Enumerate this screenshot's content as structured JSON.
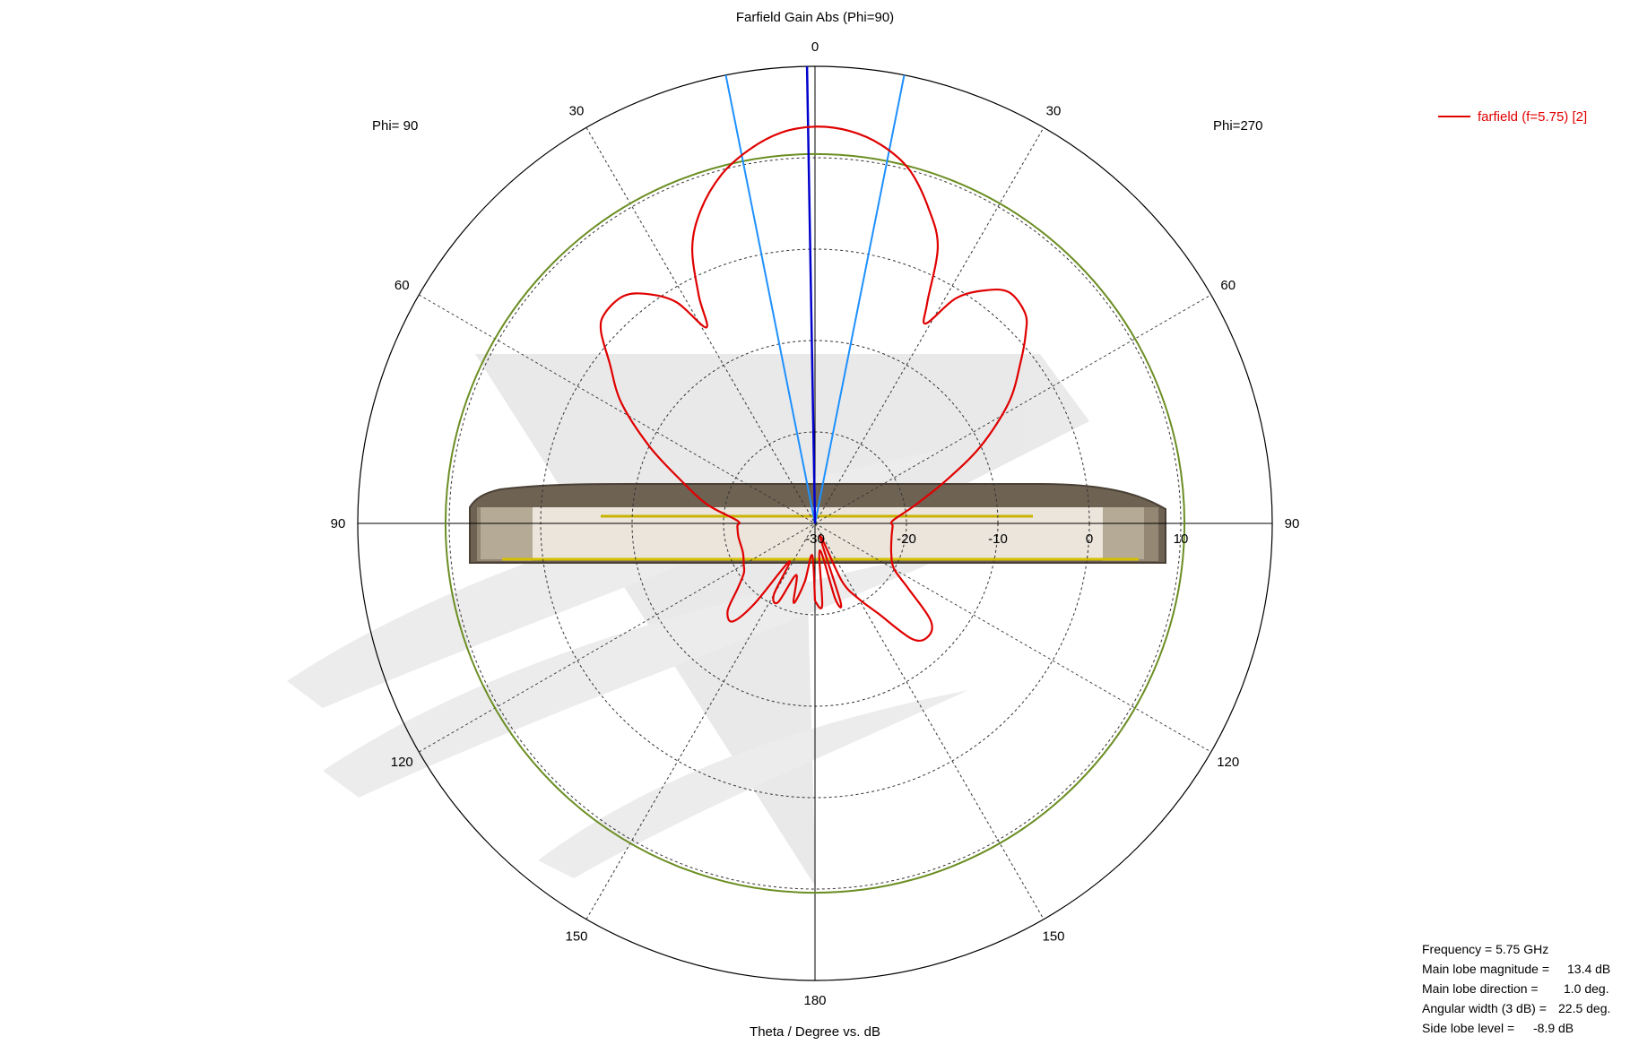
{
  "chart_data": {
    "type": "polar-line",
    "title": "Farfield Gain Abs (Phi=90)",
    "xlabel": "Theta / Degree vs. dB",
    "side_labels": {
      "left": "Phi= 90",
      "right": "Phi=270"
    },
    "angle_ticks": [
      {
        "angle": 0,
        "label": "0"
      },
      {
        "angle": 30,
        "label": "30"
      },
      {
        "angle": 60,
        "label": "60"
      },
      {
        "angle": 90,
        "label": "90"
      },
      {
        "angle": 120,
        "label": "120"
      },
      {
        "angle": 150,
        "label": "150"
      },
      {
        "angle": 180,
        "label": "180"
      },
      {
        "angle": -150,
        "label": "150"
      },
      {
        "angle": -120,
        "label": "120"
      },
      {
        "angle": -90,
        "label": "90"
      },
      {
        "angle": -60,
        "label": "60"
      },
      {
        "angle": -30,
        "label": "30"
      }
    ],
    "radial_ticks": [
      {
        "value": -30,
        "label": "-30"
      },
      {
        "value": -20,
        "label": "-20"
      },
      {
        "value": -10,
        "label": "-10"
      },
      {
        "value": 0,
        "label": "0"
      },
      {
        "value": 10,
        "label": "10"
      }
    ],
    "rlim": [
      -30,
      20
    ],
    "grid": true,
    "reference_circle_db": 10.4,
    "series": [
      {
        "name": "farfield (f=5.75) [2]",
        "color": "#e00000",
        "points": [
          [
            -180,
            -21.5
          ],
          [
            -175,
            -21.0
          ],
          [
            -170,
            -27.0
          ],
          [
            -165,
            -21.5
          ],
          [
            -162,
            -21.0
          ],
          [
            -158,
            -28.5
          ],
          [
            -155,
            -23.0
          ],
          [
            -150,
            -20.5
          ],
          [
            -145,
            -18.0
          ],
          [
            -140,
            -13.5
          ],
          [
            -135,
            -12.5
          ],
          [
            -130,
            -13.5
          ],
          [
            -125,
            -17.5
          ],
          [
            -120,
            -20.0
          ],
          [
            -112,
            -21.0
          ],
          [
            -100,
            -21.5
          ],
          [
            -92,
            -21.5
          ],
          [
            -88,
            -21.5
          ],
          [
            -80,
            -19.0
          ],
          [
            -72,
            -15.0
          ],
          [
            -65,
            -10.0
          ],
          [
            -58,
            -5.0
          ],
          [
            -52,
            -1.5
          ],
          [
            -48,
            1.0
          ],
          [
            -45,
            2.5
          ],
          [
            -40,
            3.0
          ],
          [
            -36,
            1.5
          ],
          [
            -32,
            -1.0
          ],
          [
            -29,
            -5.0
          ],
          [
            -27,
            -3.0
          ],
          [
            -24,
            3.0
          ],
          [
            -20,
            6.5
          ],
          [
            -15,
            10.0
          ],
          [
            -10,
            12.0
          ],
          [
            -5,
            13.1
          ],
          [
            0,
            13.4
          ],
          [
            5,
            12.9
          ],
          [
            10,
            11.5
          ],
          [
            15,
            9.5
          ],
          [
            20,
            6.5
          ],
          [
            24,
            3.0
          ],
          [
            27,
            -2.0
          ],
          [
            29,
            -5.5
          ],
          [
            32,
            -1.5
          ],
          [
            36,
            1.0
          ],
          [
            40,
            2.5
          ],
          [
            45,
            2.5
          ],
          [
            48,
            1.5
          ],
          [
            52,
            -1.5
          ],
          [
            58,
            -5.0
          ],
          [
            65,
            -10.0
          ],
          [
            72,
            -14.5
          ],
          [
            80,
            -18.0
          ],
          [
            88,
            -21.5
          ],
          [
            92,
            -21.5
          ],
          [
            100,
            -21.5
          ],
          [
            112,
            -21.5
          ],
          [
            120,
            -21.0
          ],
          [
            125,
            -20.5
          ],
          [
            130,
            -19.0
          ],
          [
            135,
            -16.5
          ],
          [
            140,
            -16.0
          ],
          [
            143,
            -19.0
          ],
          [
            146,
            -25.0
          ],
          [
            150,
            -21.0
          ],
          [
            155,
            -20.5
          ],
          [
            160,
            -24.0
          ],
          [
            165,
            -21.0
          ],
          [
            170,
            -23.5
          ],
          [
            175,
            -26.5
          ],
          [
            180,
            -21.5
          ]
        ]
      }
    ],
    "main_lobe_lines": {
      "direction_deg": 1.0,
      "beamwidth_edges_deg": [
        -11.25,
        11.25
      ],
      "direction_color": "#0000cc",
      "edge_color": "#1e90ff"
    },
    "colors": {
      "grid": "#333333",
      "reference_circle": "#6b8e23",
      "pattern": "#e00000"
    }
  },
  "legend": {
    "label": "farfield (f=5.75) [2]"
  },
  "stats": {
    "frequency": "Frequency = 5.75 GHz",
    "main_lobe_magnitude_label": "Main lobe magnitude =",
    "main_lobe_magnitude_value": "13.4 dB",
    "main_lobe_direction_label": "Main lobe direction =",
    "main_lobe_direction_value": "1.0 deg.",
    "angular_width_label": "Angular width (3 dB) =",
    "angular_width_value": "22.5 deg.",
    "side_lobe_label": "Side lobe level =",
    "side_lobe_value": "-8.9 dB"
  }
}
